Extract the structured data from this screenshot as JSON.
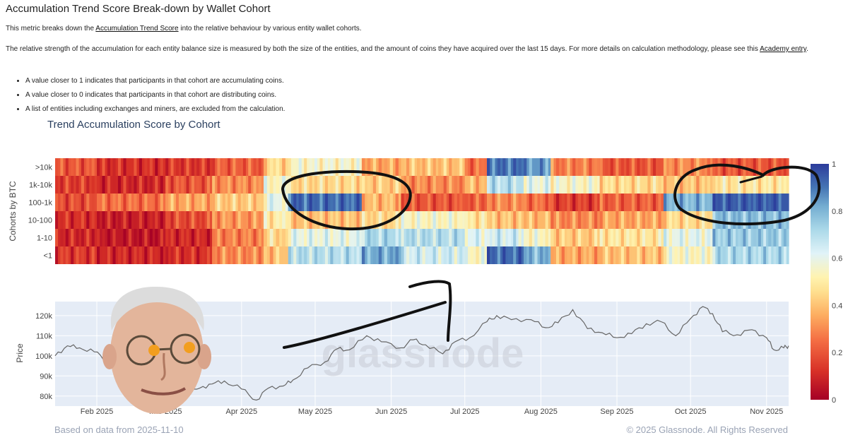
{
  "page": {
    "title": "Accumulation Trend Score Break-down by Wallet Cohort",
    "intro_prefix": "This metric breaks down the ",
    "intro_link": "Accumulation Trend Score",
    "intro_suffix": " into the relative behaviour by various entity wallet cohorts.",
    "para2_text": "The relative strength of the accumulation for each entity balance size is measured by both the size of the entities, and the amount of coins they have acquired over the last 15 days. For more details on calculation methodology, please see this ",
    "para2_link": "Academy entry",
    "para2_end": ".",
    "bullets": [
      "A value closer to 1 indicates that participants in that cohort are accumulating coins.",
      "A value closer to 0 indicates that participants in that cohort are distributing coins.",
      "A list of entities including exchanges and miners, are excluded from the calculation."
    ],
    "footer_left": "Based on data from 2025-11-10",
    "footer_right": "© 2025 Glassnode. All Rights Reserved",
    "watermark": "glassnode"
  },
  "colors": {
    "low": "#b2182b",
    "mid": "#fff3b0",
    "high": "#2c3c9b",
    "price_line": "#666666",
    "price_bg": "#e5ecf6",
    "annotation": "#111111"
  },
  "chart_data": [
    {
      "type": "heatmap",
      "title": "Trend Accumulation Score by Cohort",
      "ylabel": "Cohorts by BTC",
      "rows": [
        ">10k",
        "1k-10k",
        "100-1k",
        "10-100",
        "1-10",
        "<1"
      ],
      "x_start": "2025-01-15",
      "x_end": "2025-11-10",
      "colorbar_ticks": [
        "0",
        "0.2",
        "0.4",
        "0.6",
        "0.8",
        "1"
      ],
      "value_range": [
        0,
        1
      ],
      "segments": [
        {
          "from": "2025-01-15",
          "to": "2025-02-01",
          "values": [
            0.2,
            0.15,
            0.18,
            0.12,
            0.1,
            0.14
          ]
        },
        {
          "from": "2025-02-01",
          "to": "2025-03-01",
          "values": [
            0.12,
            0.1,
            0.25,
            0.08,
            0.06,
            0.1
          ]
        },
        {
          "from": "2025-03-01",
          "to": "2025-03-20",
          "values": [
            0.14,
            0.2,
            0.35,
            0.18,
            0.1,
            0.12
          ]
        },
        {
          "from": "2025-03-20",
          "to": "2025-04-10",
          "values": [
            0.22,
            0.3,
            0.42,
            0.32,
            0.28,
            0.3
          ]
        },
        {
          "from": "2025-04-10",
          "to": "2025-04-20",
          "values": [
            0.45,
            0.55,
            0.6,
            0.5,
            0.45,
            0.4
          ]
        },
        {
          "from": "2025-04-20",
          "to": "2025-05-20",
          "values": [
            0.55,
            0.45,
            0.92,
            0.4,
            0.6,
            0.7
          ]
        },
        {
          "from": "2025-05-20",
          "to": "2025-06-05",
          "values": [
            0.35,
            0.42,
            0.38,
            0.45,
            0.72,
            0.82
          ]
        },
        {
          "from": "2025-06-05",
          "to": "2025-07-01",
          "values": [
            0.4,
            0.3,
            0.2,
            0.55,
            0.7,
            0.65
          ]
        },
        {
          "from": "2025-07-01",
          "to": "2025-07-10",
          "values": [
            0.25,
            0.38,
            0.22,
            0.48,
            0.62,
            0.55
          ]
        },
        {
          "from": "2025-07-10",
          "to": "2025-07-25",
          "values": [
            0.9,
            0.7,
            0.3,
            0.4,
            0.65,
            0.92
          ]
        },
        {
          "from": "2025-07-25",
          "to": "2025-08-05",
          "values": [
            0.85,
            0.6,
            0.25,
            0.38,
            0.55,
            0.8
          ]
        },
        {
          "from": "2025-08-05",
          "to": "2025-08-25",
          "values": [
            0.28,
            0.55,
            0.15,
            0.3,
            0.42,
            0.35
          ]
        },
        {
          "from": "2025-08-25",
          "to": "2025-09-20",
          "values": [
            0.2,
            0.45,
            0.22,
            0.35,
            0.48,
            0.4
          ]
        },
        {
          "from": "2025-09-20",
          "to": "2025-10-10",
          "values": [
            0.3,
            0.4,
            0.8,
            0.45,
            0.6,
            0.55
          ]
        },
        {
          "from": "2025-10-10",
          "to": "2025-11-10",
          "values": [
            0.2,
            0.48,
            0.95,
            0.78,
            0.75,
            0.72
          ]
        }
      ]
    },
    {
      "type": "line",
      "ylabel": "Price",
      "y_ticks": [
        80000,
        90000,
        100000,
        110000,
        120000
      ],
      "y_tick_labels": [
        "80k",
        "90k",
        "100k",
        "110k",
        "120k"
      ],
      "ylim": [
        75000,
        127000
      ],
      "x_ticks": [
        "2025-02-01",
        "2025-03-01",
        "2025-04-01",
        "2025-05-01",
        "2025-06-01",
        "2025-07-01",
        "2025-08-01",
        "2025-09-01",
        "2025-10-01",
        "2025-11-01"
      ],
      "x_tick_labels": [
        "Feb 2025",
        "Mar 2025",
        "Apr 2025",
        "May 2025",
        "Jun 2025",
        "Jul 2025",
        "Aug 2025",
        "Sep 2025",
        "Oct 2025",
        "Nov 2025"
      ],
      "x": [
        "2025-01-15",
        "2025-01-20",
        "2025-01-25",
        "2025-01-31",
        "2025-02-05",
        "2025-02-10",
        "2025-02-15",
        "2025-02-20",
        "2025-02-25",
        "2025-03-01",
        "2025-03-05",
        "2025-03-10",
        "2025-03-15",
        "2025-03-20",
        "2025-03-25",
        "2025-04-01",
        "2025-04-07",
        "2025-04-12",
        "2025-04-18",
        "2025-04-22",
        "2025-04-28",
        "2025-05-05",
        "2025-05-10",
        "2025-05-15",
        "2025-05-22",
        "2025-05-28",
        "2025-06-05",
        "2025-06-10",
        "2025-06-15",
        "2025-06-22",
        "2025-06-27",
        "2025-07-03",
        "2025-07-10",
        "2025-07-14",
        "2025-07-20",
        "2025-07-28",
        "2025-08-03",
        "2025-08-08",
        "2025-08-14",
        "2025-08-20",
        "2025-08-26",
        "2025-09-01",
        "2025-09-07",
        "2025-09-13",
        "2025-09-19",
        "2025-09-25",
        "2025-10-01",
        "2025-10-06",
        "2025-10-10",
        "2025-10-14",
        "2025-10-20",
        "2025-10-26",
        "2025-11-01",
        "2025-11-04",
        "2025-11-08",
        "2025-11-10"
      ],
      "y": [
        100000,
        105000,
        104000,
        102000,
        98000,
        97500,
        96000,
        96000,
        88000,
        86000,
        90000,
        81000,
        84000,
        86000,
        87500,
        83500,
        78000,
        84000,
        85000,
        88000,
        94000,
        97000,
        103500,
        103000,
        110000,
        107000,
        104000,
        108000,
        105500,
        101000,
        107000,
        109000,
        117000,
        120000,
        118000,
        118000,
        114000,
        116500,
        123000,
        113500,
        111500,
        109000,
        111000,
        116000,
        117000,
        110000,
        118500,
        124500,
        121000,
        112000,
        110500,
        113000,
        109000,
        103000,
        104000,
        105000
      ]
    }
  ]
}
